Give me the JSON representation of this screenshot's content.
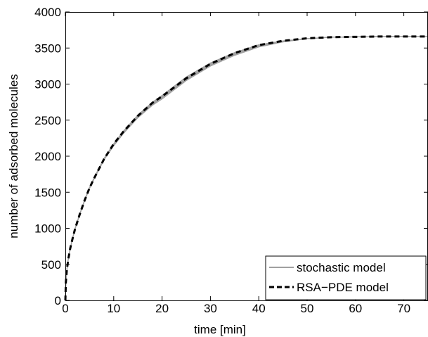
{
  "chart_data": {
    "type": "line",
    "title": "",
    "xlabel": "time [min]",
    "ylabel": "number of adsorbed molecules",
    "xlim": [
      0,
      75
    ],
    "ylim": [
      0,
      4000
    ],
    "xticks": [
      0,
      10,
      20,
      30,
      40,
      50,
      60,
      70
    ],
    "yticks": [
      0,
      500,
      1000,
      1500,
      2000,
      2500,
      3000,
      3500,
      4000
    ],
    "grid": false,
    "legend_position": "bottom-right",
    "x": [
      0,
      0.1,
      0.3,
      0.6,
      1,
      1.5,
      2,
      3,
      4,
      5,
      6,
      8,
      10,
      12,
      15,
      18,
      20,
      25,
      30,
      35,
      40,
      45,
      50,
      55,
      60,
      65,
      70,
      75
    ],
    "series": [
      {
        "name": "stochastic model",
        "color": "#a0a0a0",
        "style": "solid",
        "values": [
          0,
          250,
          420,
          570,
          720,
          860,
          990,
          1200,
          1390,
          1560,
          1700,
          1960,
          2160,
          2330,
          2550,
          2730,
          2820,
          3070,
          3270,
          3420,
          3530,
          3590,
          3630,
          3650,
          3655,
          3660,
          3660,
          3660
        ]
      },
      {
        "name": "RSA−PDE model",
        "color": "#000000",
        "style": "dashed",
        "values": [
          0,
          250,
          420,
          570,
          720,
          860,
          990,
          1200,
          1390,
          1560,
          1700,
          1960,
          2170,
          2340,
          2560,
          2740,
          2830,
          3080,
          3280,
          3430,
          3540,
          3600,
          3635,
          3650,
          3655,
          3660,
          3660,
          3660
        ]
      }
    ],
    "stochastic_spread": 25
  }
}
